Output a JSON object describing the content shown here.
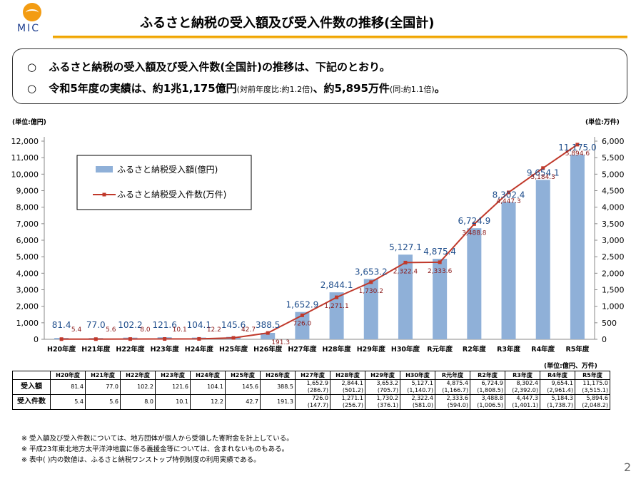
{
  "header": {
    "logo_text": "MIC",
    "title": "ふるさと納税の受入額及び受入件数の推移(全国計)"
  },
  "summary": {
    "bullet": "○",
    "line1": "ふるさと納税の受入額及び受入件数(全国計)の推移は、下記のとおり。",
    "line2_a": "令和5年度の実績は、約1兆1,175億円",
    "line2_b": "(対前年度比:約1.2倍)",
    "line2_c": "、約5,895万件",
    "line2_d": "(同:約1.1倍)",
    "line2_e": "。"
  },
  "chart_data": {
    "type": "bar",
    "left_unit": "(単位:億円)",
    "right_unit": "(単位:万件)",
    "categories": [
      "H20年度",
      "H21年度",
      "H22年度",
      "H23年度",
      "H24年度",
      "H25年度",
      "H26年度",
      "H27年度",
      "H28年度",
      "H29年度",
      "H30年度",
      "R元年度",
      "R2年度",
      "R3年度",
      "R4年度",
      "R5年度"
    ],
    "series": [
      {
        "name": "ふるさと納税受入額(億円)",
        "type": "bar",
        "color": "#8fb0d8",
        "values": [
          81.4,
          77.0,
          102.2,
          121.6,
          104.1,
          145.6,
          388.5,
          1652.9,
          2844.1,
          3653.2,
          5127.1,
          4875.4,
          6724.9,
          8302.4,
          9654.1,
          11175.0
        ],
        "labels": [
          "81.4",
          "77.0",
          "102.2",
          "121.6",
          "104.1",
          "145.6",
          "388.5",
          "1,652.9",
          "2,844.1",
          "3,653.2",
          "5,127.1",
          "4,875.4",
          "6,724.9",
          "8,302.4",
          "9,654.1",
          "11,175.0"
        ]
      },
      {
        "name": "ふるさと納税受入件数(万件)",
        "type": "line",
        "color": "#c0392b",
        "values": [
          5.4,
          5.6,
          8.0,
          10.1,
          12.2,
          42.7,
          191.3,
          726.0,
          1271.1,
          1730.2,
          2322.4,
          2333.6,
          3488.8,
          4447.3,
          5184.3,
          5894.6
        ],
        "labels": [
          "5.4",
          "5.6",
          "8.0",
          "10.1",
          "12.2",
          "42.7",
          "191.3",
          "726.0",
          "1,271.1",
          "1,730.2",
          "2,322.4",
          "2,333.6",
          "3,488.8",
          "4,447.3",
          "5,184.3",
          "5,894.6"
        ]
      }
    ],
    "y_left": {
      "min": 0,
      "max": 12000,
      "step": 1000,
      "ticks": [
        "0",
        "1,000",
        "2,000",
        "3,000",
        "4,000",
        "5,000",
        "6,000",
        "7,000",
        "8,000",
        "9,000",
        "10,000",
        "11,000",
        "12,000"
      ]
    },
    "y_right": {
      "min": 0,
      "max": 6000,
      "step": 500,
      "ticks": [
        "0",
        "500",
        "1,000",
        "1,500",
        "2,000",
        "2,500",
        "3,000",
        "3,500",
        "4,000",
        "4,500",
        "5,000",
        "5,500",
        "6,000"
      ]
    },
    "legend_placement": "top-left",
    "grid": false
  },
  "table": {
    "unit": "(単位:億円、万件)",
    "headers": [
      "H20年度",
      "H21年度",
      "H22年度",
      "H23年度",
      "H24年度",
      "H25年度",
      "H26年度",
      "H27年度",
      "H28年度",
      "H29年度",
      "H30年度",
      "R元年度",
      "R2年度",
      "R3年度",
      "R4年度",
      "R5年度"
    ],
    "rows": [
      {
        "label": "受入額",
        "values": [
          "81.4",
          "77.0",
          "102.2",
          "121.6",
          "104.1",
          "145.6",
          "388.5",
          "1,652.9",
          "2,844.1",
          "3,653.2",
          "5,127.1",
          "4,875.4",
          "6,724.9",
          "8,302.4",
          "9,654.1",
          "11,175.0"
        ],
        "sub": [
          "",
          "",
          "",
          "",
          "",
          "",
          "",
          "(286.7)",
          "(501.2)",
          "(705.7)",
          "(1,140.7)",
          "(1,166.7)",
          "(1,808.5)",
          "(2,392.0)",
          "(2,961.4)",
          "(3,515.1)"
        ]
      },
      {
        "label": "受入件数",
        "values": [
          "5.4",
          "5.6",
          "8.0",
          "10.1",
          "12.2",
          "42.7",
          "191.3",
          "726.0",
          "1,271.1",
          "1,730.2",
          "2,322.4",
          "2,333.6",
          "3,488.8",
          "4,447.3",
          "5,184.3",
          "5,894.6"
        ],
        "sub": [
          "",
          "",
          "",
          "",
          "",
          "",
          "",
          "(147.7)",
          "(256.7)",
          "(376.1)",
          "(581.0)",
          "(594.0)",
          "(1,006.5)",
          "(1,401.1)",
          "(1,738.7)",
          "(2,048.2)"
        ]
      }
    ]
  },
  "notes": [
    "※ 受入額及び受入件数については、地方団体が個人から受領した寄附金を計上している。",
    "※ 平成23年東北地方太平洋沖地震に係る義援金等については、含まれないものもある。",
    "※ 表中( )内の数値は、ふるさと納税ワンストップ特例制度の利用実績である。"
  ],
  "page_number": "2"
}
